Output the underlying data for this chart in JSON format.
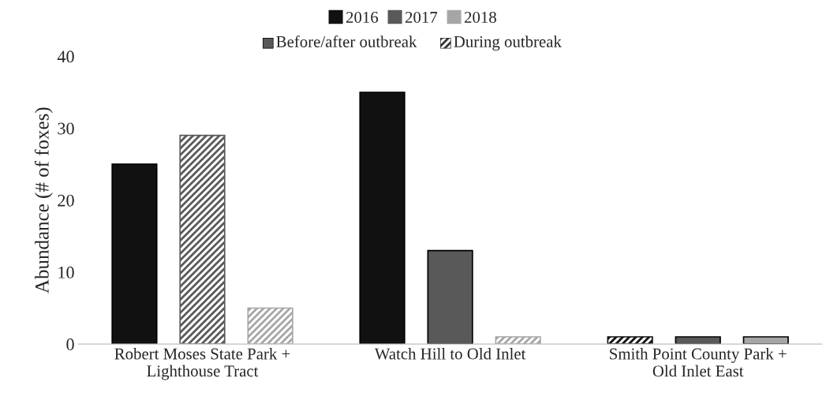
{
  "chart_data": {
    "type": "bar",
    "ylabel": "Abundance (# of foxes)",
    "categories": [
      "Robert Moses State Park +\nLighthouse Tract",
      "Watch Hill to Old Inlet",
      "Smith Point County Park +\nOld Inlet East"
    ],
    "series": [
      {
        "name": "2016",
        "color": "#111111",
        "values": [
          25,
          35,
          null
        ],
        "line_style": "solid"
      },
      {
        "name": "2017",
        "color": "#595959",
        "values": [
          null,
          13,
          1
        ],
        "line_style": "solid"
      },
      {
        "name": "2018",
        "color": "#a6a6a6",
        "values": [
          null,
          null,
          1
        ],
        "line_style": "solid"
      },
      {
        "color": "#111111",
        "values": [
          null,
          null,
          1
        ],
        "line_style": "dashed"
      },
      {
        "color": "#595959",
        "values": [
          29,
          null,
          null
        ],
        "line_style": "dashed"
      },
      {
        "color": "#a6a6a6",
        "values": [
          5,
          1,
          null
        ],
        "line_style": "dashed"
      }
    ],
    "annotations": [
      "Before/after outbreak",
      "During outbreak"
    ],
    "ylim": [
      0,
      40
    ],
    "yticks": [
      0,
      10,
      20,
      30,
      40
    ],
    "grid": false,
    "legend": "top"
  }
}
